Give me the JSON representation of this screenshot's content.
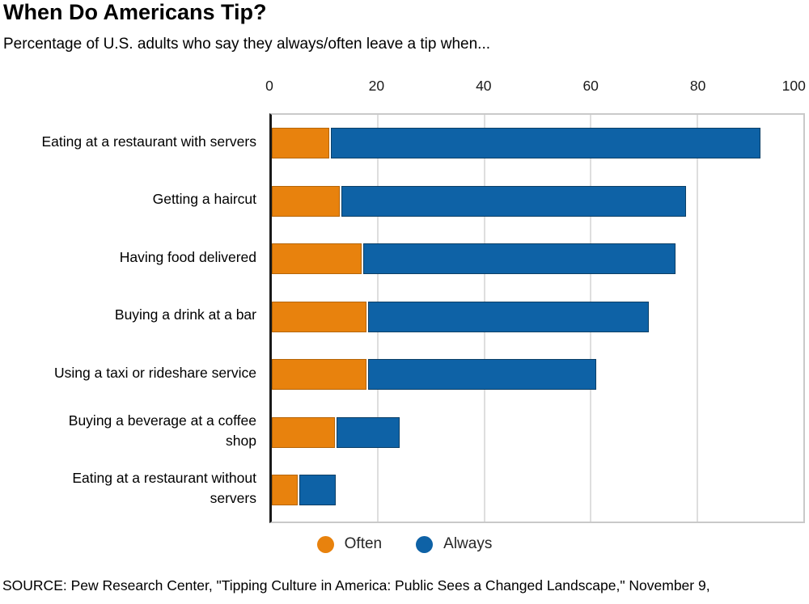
{
  "header": {
    "title": "When Do Americans Tip?",
    "subtitle": "Percentage of U.S. adults who say they always/often leave a tip when..."
  },
  "chart_data": {
    "type": "bar",
    "orientation": "horizontal",
    "stacked": true,
    "title": "When Do Americans Tip?",
    "subtitle": "Percentage of U.S. adults who say they always/often leave a tip when...",
    "categories": [
      "Eating at a restaurant with servers",
      "Getting a haircut",
      "Having food delivered",
      "Buying a drink at a bar",
      "Using a taxi or rideshare service",
      "Buying a beverage at a coffee\nshop",
      "Eating at a restaurant without\nservers"
    ],
    "series": [
      {
        "name": "Often",
        "color": "#E8820D",
        "border_color": "#b56508",
        "values": [
          11,
          13,
          17,
          18,
          18,
          12,
          5
        ]
      },
      {
        "name": "Always",
        "color": "#0E62A6",
        "border_color": "#0c3f66",
        "values": [
          81,
          65,
          59,
          53,
          43,
          12,
          7
        ]
      }
    ],
    "totals": [
      92,
      78,
      76,
      71,
      61,
      24,
      12
    ],
    "xlim": [
      0,
      100
    ],
    "x_ticks": [
      0,
      20,
      40,
      60,
      80,
      100
    ],
    "x_tick_labels": [
      "0",
      "20",
      "40",
      "60",
      "80",
      "100"
    ],
    "grid": true,
    "gridline_color": "#dedede",
    "legend_position": "bottom"
  },
  "legend": {
    "items": [
      {
        "label": "Often",
        "color": "#E8820D"
      },
      {
        "label": "Always",
        "color": "#0E62A6"
      }
    ]
  },
  "source": "SOURCE: Pew Research Center, \"Tipping Culture in America: Public Sees a Changed Landscape,\" November 9,"
}
